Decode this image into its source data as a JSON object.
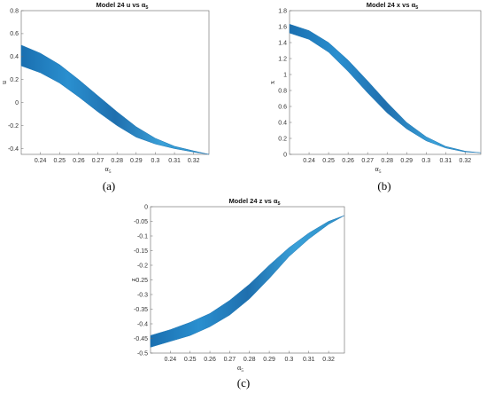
{
  "chart_data": [
    {
      "type": "area",
      "title": "Model 24  u vs α",
      "title_sub": "5",
      "xlabel": "α",
      "xlabel_sub": "5",
      "ylabel": "u",
      "xlim": [
        0.23,
        0.328
      ],
      "ylim": [
        -0.45,
        0.8
      ],
      "xticks": [
        "0.24",
        "0.25",
        "0.26",
        "0.27",
        "0.28",
        "0.29",
        "0.3",
        "0.31",
        "0.32"
      ],
      "yticks": [
        "-0.4",
        "-0.2",
        "0",
        "0.2",
        "0.4",
        "0.6",
        "0.8"
      ],
      "x": [
        0.23,
        0.24,
        0.25,
        0.26,
        0.27,
        0.28,
        0.29,
        0.3,
        0.31,
        0.32,
        0.328
      ],
      "upper": [
        0.5,
        0.43,
        0.33,
        0.2,
        0.06,
        -0.08,
        -0.21,
        -0.31,
        -0.38,
        -0.42,
        -0.45
      ],
      "lower": [
        0.32,
        0.26,
        0.17,
        0.05,
        -0.08,
        -0.2,
        -0.3,
        -0.36,
        -0.4,
        -0.43,
        -0.45
      ],
      "panel_label": "(a)",
      "color": "#1f77b4"
    },
    {
      "type": "area",
      "title": "Model 24 x vs α",
      "title_sub": "5",
      "xlabel": "α",
      "xlabel_sub": "5",
      "ylabel": "x",
      "xlim": [
        0.23,
        0.328
      ],
      "ylim": [
        0,
        1.8
      ],
      "xticks": [
        "0.24",
        "0.25",
        "0.26",
        "0.27",
        "0.28",
        "0.29",
        "0.3",
        "0.31",
        "0.32"
      ],
      "yticks": [
        "0",
        "0.2",
        "0.4",
        "0.6",
        "0.8",
        "1",
        "1.2",
        "1.4",
        "1.6",
        "1.8"
      ],
      "x": [
        0.23,
        0.24,
        0.25,
        0.26,
        0.27,
        0.28,
        0.29,
        0.3,
        0.31,
        0.32,
        0.328
      ],
      "upper": [
        1.63,
        1.55,
        1.4,
        1.18,
        0.92,
        0.65,
        0.4,
        0.22,
        0.1,
        0.04,
        0.02
      ],
      "lower": [
        1.52,
        1.44,
        1.28,
        1.04,
        0.77,
        0.52,
        0.32,
        0.17,
        0.08,
        0.03,
        0.02
      ],
      "panel_label": "(b)",
      "color": "#1f77b4"
    },
    {
      "type": "area",
      "title": "Model 24 z vs α",
      "title_sub": "5",
      "xlabel": "α",
      "xlabel_sub": "5",
      "ylabel": "z",
      "xlim": [
        0.23,
        0.328
      ],
      "ylim": [
        -0.5,
        0
      ],
      "xticks": [
        "0.24",
        "0.25",
        "0.26",
        "0.27",
        "0.28",
        "0.29",
        "0.3",
        "0.31",
        "0.32"
      ],
      "yticks": [
        "-0.5",
        "-0.45",
        "-0.4",
        "-0.35",
        "-0.3",
        "-0.25",
        "-0.2",
        "-0.15",
        "-0.1",
        "-0.05",
        "0"
      ],
      "x": [
        0.23,
        0.24,
        0.25,
        0.26,
        0.27,
        0.28,
        0.29,
        0.3,
        0.31,
        0.32,
        0.328
      ],
      "upper": [
        -0.44,
        -0.42,
        -0.395,
        -0.365,
        -0.32,
        -0.265,
        -0.2,
        -0.14,
        -0.09,
        -0.05,
        -0.03
      ],
      "lower": [
        -0.48,
        -0.46,
        -0.44,
        -0.41,
        -0.37,
        -0.315,
        -0.245,
        -0.17,
        -0.11,
        -0.06,
        -0.03
      ],
      "panel_label": "(c)",
      "color": "#1f77b4"
    }
  ]
}
